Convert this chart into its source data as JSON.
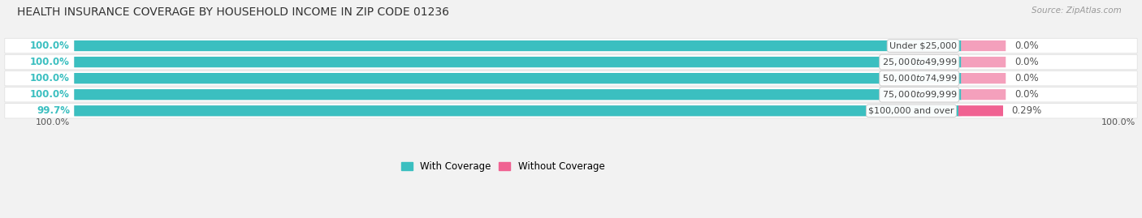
{
  "title": "HEALTH INSURANCE COVERAGE BY HOUSEHOLD INCOME IN ZIP CODE 01236",
  "source": "Source: ZipAtlas.com",
  "categories": [
    "Under $25,000",
    "$25,000 to $49,999",
    "$50,000 to $74,999",
    "$75,000 to $99,999",
    "$100,000 and over"
  ],
  "with_coverage": [
    100.0,
    100.0,
    100.0,
    100.0,
    99.7
  ],
  "without_coverage": [
    0.0,
    0.0,
    0.0,
    0.0,
    0.29
  ],
  "color_with": "#3bbfc0",
  "color_without_normal": "#f4a0bc",
  "color_without_last": "#f06292",
  "bg_color": "#f2f2f2",
  "row_bg": "#ffffff",
  "label_fontsize": 8.5,
  "title_fontsize": 10,
  "legend_label_with": "With Coverage",
  "legend_label_without": "Without Coverage",
  "bottom_left_label": "100.0%",
  "bottom_right_label": "100.0%"
}
